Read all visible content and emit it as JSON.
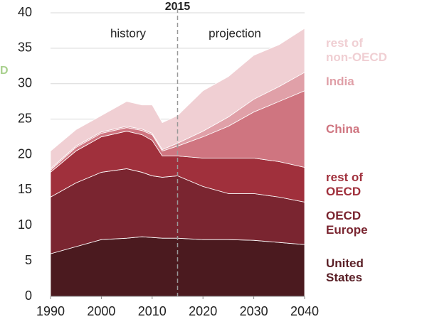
{
  "chart_data": {
    "type": "stacked_area",
    "y_label": "D",
    "annotations": {
      "year": "2015",
      "left": "history",
      "right": "projection"
    },
    "divider_x": 2015,
    "x": [
      1990,
      1995,
      2000,
      2005,
      2008,
      2010,
      2012,
      2015,
      2020,
      2025,
      2030,
      2035,
      2040
    ],
    "series": [
      {
        "name": "United\nStates",
        "color": "#4b1a1f",
        "values": [
          6,
          7,
          8,
          8.2,
          8.4,
          8.3,
          8.2,
          8.2,
          8.0,
          8.0,
          7.9,
          7.6,
          7.3
        ]
      },
      {
        "name": "OECD\nEurope",
        "color": "#7a2530",
        "values": [
          8,
          9,
          9.5,
          9.8,
          9.1,
          8.7,
          8.6,
          8.8,
          7.5,
          6.5,
          6.6,
          6.4,
          6.0
        ]
      },
      {
        "name": "rest of\nOECD",
        "color": "#a0303c",
        "values": [
          3.5,
          4.5,
          5,
          5.3,
          5.3,
          5,
          3,
          2.8,
          4,
          5,
          5,
          5,
          4.9
        ]
      },
      {
        "name": "China",
        "color": "#cf7580",
        "values": [
          0.3,
          0.5,
          0.5,
          0.5,
          0.6,
          0.8,
          0.7,
          1.4,
          3,
          4.5,
          6.5,
          8.5,
          10.8
        ]
      },
      {
        "name": "India",
        "color": "#e0a0a8",
        "values": [
          0.2,
          0.2,
          0.2,
          0.2,
          0.2,
          0.2,
          0.2,
          0.4,
          0.8,
          1.3,
          1.8,
          2.1,
          2.6
        ]
      },
      {
        "name": "rest of\nnon-OECD",
        "color": "#f0cfd3",
        "values": [
          2.5,
          2.3,
          2.3,
          3.5,
          3.4,
          4,
          3.8,
          3.9,
          5.7,
          5.7,
          6.2,
          5.9,
          6.2
        ]
      }
    ],
    "xlim": [
      1990,
      2040
    ],
    "xticks": [
      1990,
      2000,
      2010,
      2020,
      2030,
      2040
    ],
    "ylim": [
      0,
      40
    ],
    "yticks": [
      0,
      5,
      10,
      15,
      20,
      25,
      30,
      35,
      40
    ],
    "grid": true
  }
}
